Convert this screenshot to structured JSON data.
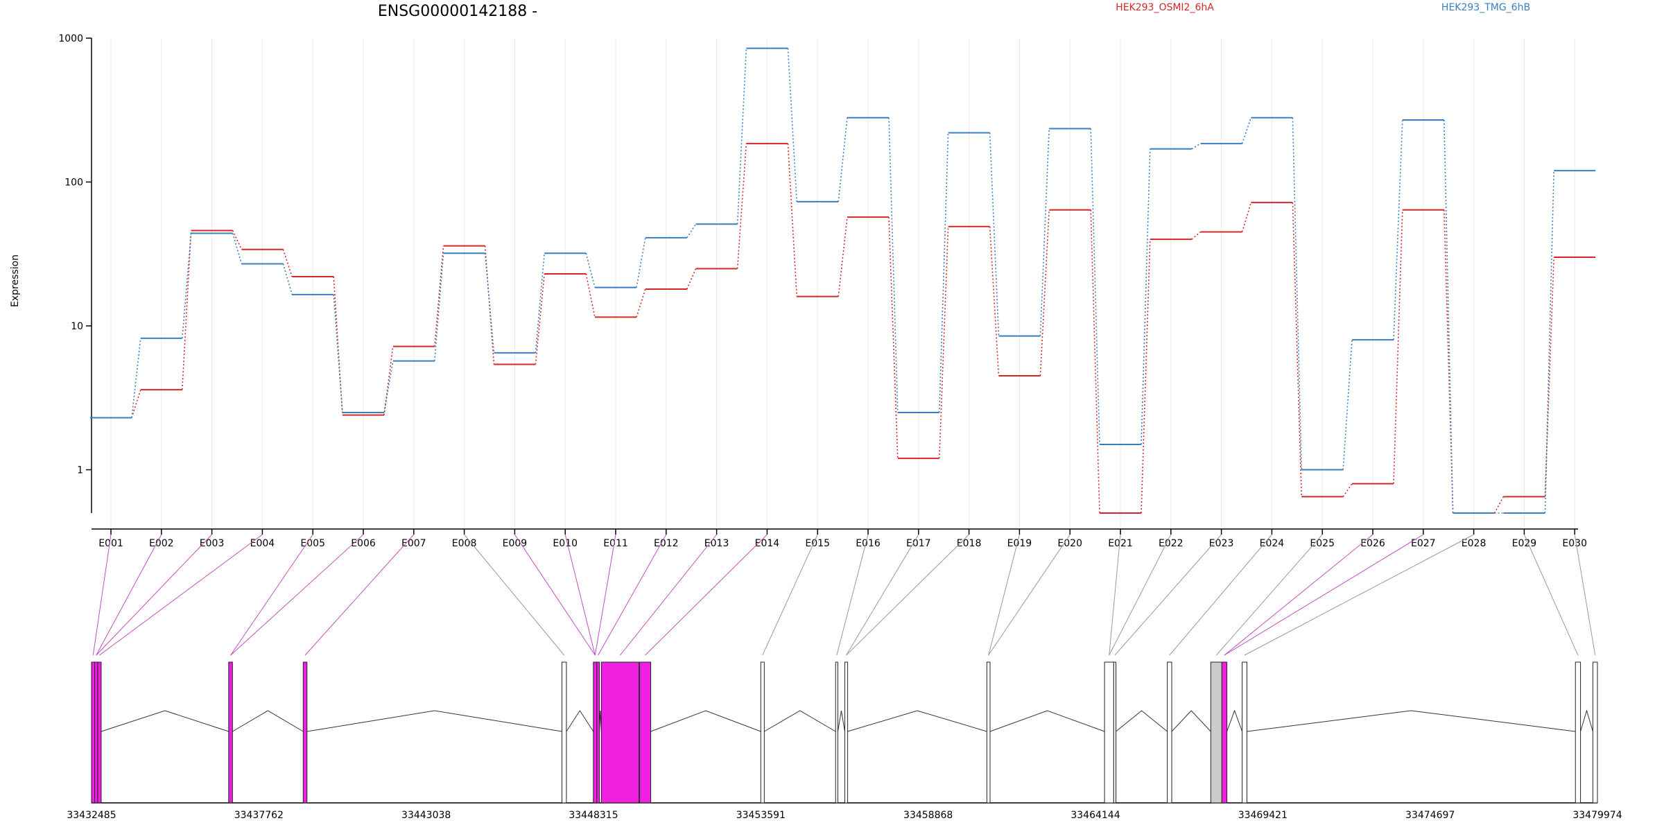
{
  "chart_data": {
    "type": "line",
    "title": "ENSG00000142188 -",
    "ylabel": "Expression",
    "yscale": "log",
    "ylim": [
      0.5,
      1000
    ],
    "yticks": [
      1,
      10,
      100,
      1000
    ],
    "ytick_labels": [
      "1",
      "10",
      "100",
      "1000"
    ],
    "categories": [
      "E001",
      "E002",
      "E003",
      "E004",
      "E005",
      "E006",
      "E007",
      "E008",
      "E009",
      "E010",
      "E011",
      "E012",
      "E013",
      "E014",
      "E015",
      "E016",
      "E017",
      "E018",
      "E019",
      "E020",
      "E021",
      "E022",
      "E023",
      "E024",
      "E025",
      "E026",
      "E027",
      "E028",
      "E029",
      "E030"
    ],
    "series": [
      {
        "name": "HEK293_OSMI2_6hA",
        "color": "#d62728",
        "values": [
          2.3,
          3.6,
          46,
          34,
          22,
          2.4,
          7.2,
          36,
          5.4,
          23,
          11.5,
          18,
          25,
          185,
          16,
          57,
          1.2,
          49,
          4.5,
          64,
          0.5,
          40,
          45,
          72,
          0.65,
          0.8,
          64,
          0.5,
          0.65,
          30
        ]
      },
      {
        "name": "HEK293_TMG_6hB",
        "color": "#3a7ec2",
        "values": [
          2.3,
          8.2,
          44,
          27,
          16.5,
          2.5,
          5.7,
          32,
          6.5,
          32,
          18.5,
          41,
          51,
          850,
          73,
          280,
          2.5,
          220,
          8.5,
          235,
          1.5,
          170,
          185,
          280,
          1.0,
          8.0,
          270,
          0.5,
          0.5,
          120
        ]
      }
    ],
    "legend_position": "top"
  },
  "gene_model": {
    "coord_labels": [
      "33432485",
      "33437762",
      "33443038",
      "33448315",
      "33453591",
      "33458868",
      "33464144",
      "33469421",
      "33474697",
      "33479974"
    ],
    "coord_range": [
      33432485,
      33479974
    ],
    "exon_fill": "#f020e0",
    "exon_fill_gray": "#cccccc",
    "connector_gray": "#999999",
    "connector_magenta": "#c050c0",
    "exons": [
      {
        "start": 33432485,
        "end": 33432585,
        "fill": "magenta"
      },
      {
        "start": 33432585,
        "end": 33432680,
        "fill": "magenta"
      },
      {
        "start": 33432680,
        "end": 33432790,
        "fill": "magenta"
      },
      {
        "start": 33436810,
        "end": 33436930,
        "fill": "magenta"
      },
      {
        "start": 33439160,
        "end": 33439280,
        "fill": "magenta"
      },
      {
        "start": 33447320,
        "end": 33447460,
        "fill": "white"
      },
      {
        "start": 33448310,
        "end": 33448420,
        "fill": "magenta"
      },
      {
        "start": 33448420,
        "end": 33448500,
        "fill": "magenta"
      },
      {
        "start": 33448560,
        "end": 33449750,
        "fill": "magenta"
      },
      {
        "start": 33449770,
        "end": 33450120,
        "fill": "magenta"
      },
      {
        "start": 33453590,
        "end": 33453700,
        "fill": "white"
      },
      {
        "start": 33455950,
        "end": 33456020,
        "fill": "white"
      },
      {
        "start": 33456240,
        "end": 33456330,
        "fill": "white"
      },
      {
        "start": 33460720,
        "end": 33460820,
        "fill": "white"
      },
      {
        "start": 33464430,
        "end": 33464720,
        "fill": "white"
      },
      {
        "start": 33464720,
        "end": 33464790,
        "fill": "white"
      },
      {
        "start": 33466410,
        "end": 33466550,
        "fill": "white"
      },
      {
        "start": 33467780,
        "end": 33468130,
        "fill": "gray"
      },
      {
        "start": 33468130,
        "end": 33468290,
        "fill": "magenta"
      },
      {
        "start": 33468770,
        "end": 33468920,
        "fill": "white"
      },
      {
        "start": 33479280,
        "end": 33479440,
        "fill": "white"
      },
      {
        "start": 33479830,
        "end": 33479974,
        "fill": "white"
      }
    ],
    "exon_bin_map": [
      0,
      1,
      1,
      2,
      3,
      3,
      4,
      5,
      6,
      6,
      6,
      7,
      8,
      9,
      10,
      11,
      12,
      12,
      13,
      13,
      14,
      14,
      15,
      16,
      17,
      18,
      18,
      19,
      20,
      21
    ]
  }
}
